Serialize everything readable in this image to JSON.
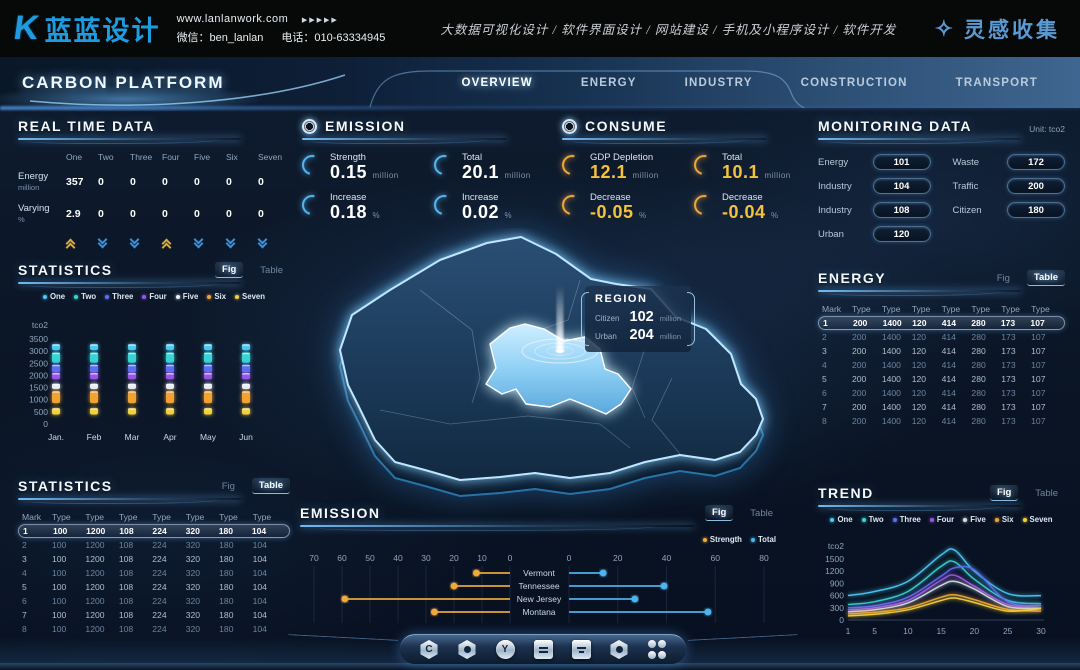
{
  "header": {
    "logo_glyph": "K",
    "logo_text": "蓝蓝设计",
    "website": "www.lanlanwork.com",
    "pager_arrows": "▶▶▶▶▶",
    "wechat": "微信：ben_lanlan",
    "phone": "电话：010-63334945",
    "services": "大数据可视化设计 / 软件界面设计 / 网站建设 / 手机及小程序设计 / 软件开发",
    "collect": "灵感收集"
  },
  "nav": {
    "title": "CARBON PLATFORM",
    "items": [
      {
        "label": "OVERVIEW",
        "active": true
      },
      {
        "label": "ENERGY",
        "active": false
      },
      {
        "label": "INDUSTRY",
        "active": false
      },
      {
        "label": "CONSTRUCTION",
        "active": false
      },
      {
        "label": "TRANSPORT",
        "active": false
      }
    ]
  },
  "realtime": {
    "title": "REAL TIME DATA",
    "columns": [
      "One",
      "Two",
      "Three",
      "Four",
      "Five",
      "Six",
      "Seven"
    ],
    "rows": [
      {
        "label": "Energy",
        "unit": "million",
        "values": [
          "357",
          "0",
          "0",
          "0",
          "0",
          "0",
          "0"
        ]
      },
      {
        "label": "Varying",
        "unit": "%",
        "values": [
          "2.9",
          "0",
          "0",
          "0",
          "0",
          "0",
          "0"
        ]
      }
    ],
    "trends": [
      "up",
      "down",
      "down",
      "up",
      "down",
      "down",
      "down"
    ]
  },
  "emission_stats": {
    "title": "EMISSION",
    "items": [
      {
        "label": "Strength",
        "value": "0.15",
        "unit": "million"
      },
      {
        "label": "Total",
        "value": "20.1",
        "unit": "million"
      },
      {
        "label": "Increase",
        "value": "0.18",
        "unit": "%"
      },
      {
        "label": "Increase",
        "value": "0.02",
        "unit": "%"
      }
    ]
  },
  "consume_stats": {
    "title": "CONSUME",
    "items": [
      {
        "label": "GDP Depletion",
        "value": "12.1",
        "unit": "million"
      },
      {
        "label": "Total",
        "value": "10.1",
        "unit": "million"
      },
      {
        "label": "Decrease",
        "value": "-0.05",
        "unit": "%"
      },
      {
        "label": "Decrease",
        "value": "-0.04",
        "unit": "%"
      }
    ]
  },
  "monitoring": {
    "title": "MONITORING DATA",
    "unit_note": "Unit: tco2",
    "left_items": [
      {
        "label": "Energy",
        "value": "101"
      },
      {
        "label": "Industry",
        "value": "104"
      },
      {
        "label": "Industry",
        "value": "108"
      },
      {
        "label": "Urban",
        "value": "120"
      }
    ],
    "right_items": [
      {
        "label": "Waste",
        "value": "172"
      },
      {
        "label": "Traffic",
        "value": "200"
      },
      {
        "label": "Citizen",
        "value": "180"
      }
    ]
  },
  "region_popup": {
    "title": "REGION",
    "rows": [
      {
        "label": "Citizen",
        "value": "102",
        "unit": "million"
      },
      {
        "label": "Urban",
        "value": "204",
        "unit": "million"
      }
    ]
  },
  "statistics_fig": {
    "title": "STATISTICS",
    "fig_label": "Fig",
    "table_label": "Table",
    "active": "fig"
  },
  "statistics_table": {
    "title": "STATISTICS",
    "fig_label": "Fig",
    "table_label": "Table",
    "active": "table",
    "headers": [
      "Mark",
      "Type",
      "Type",
      "Type",
      "Type",
      "Type",
      "Type",
      "Type"
    ],
    "highlight_row": 0,
    "rows": [
      [
        "1",
        "100",
        "1200",
        "108",
        "224",
        "320",
        "180",
        "104"
      ],
      [
        "2",
        "100",
        "1200",
        "108",
        "224",
        "320",
        "180",
        "104"
      ],
      [
        "3",
        "100",
        "1200",
        "108",
        "224",
        "320",
        "180",
        "104"
      ],
      [
        "4",
        "100",
        "1200",
        "108",
        "224",
        "320",
        "180",
        "104"
      ],
      [
        "5",
        "100",
        "1200",
        "108",
        "224",
        "320",
        "180",
        "104"
      ],
      [
        "6",
        "100",
        "1200",
        "108",
        "224",
        "320",
        "180",
        "104"
      ],
      [
        "7",
        "100",
        "1200",
        "108",
        "224",
        "320",
        "180",
        "104"
      ],
      [
        "8",
        "100",
        "1200",
        "108",
        "224",
        "320",
        "180",
        "104"
      ]
    ]
  },
  "energy_table": {
    "title": "ENERGY",
    "fig_label": "Fig",
    "table_label": "Table",
    "active": "table",
    "headers": [
      "Mark",
      "Type",
      "Type",
      "Type",
      "Type",
      "Type",
      "Type",
      "Type"
    ],
    "highlight_row": 0,
    "rows": [
      [
        "1",
        "200",
        "1400",
        "120",
        "414",
        "280",
        "173",
        "107"
      ],
      [
        "2",
        "200",
        "1400",
        "120",
        "414",
        "280",
        "173",
        "107"
      ],
      [
        "3",
        "200",
        "1400",
        "120",
        "414",
        "280",
        "173",
        "107"
      ],
      [
        "4",
        "200",
        "1400",
        "120",
        "414",
        "280",
        "173",
        "107"
      ],
      [
        "5",
        "200",
        "1400",
        "120",
        "414",
        "280",
        "173",
        "107"
      ],
      [
        "6",
        "200",
        "1400",
        "120",
        "414",
        "280",
        "173",
        "107"
      ],
      [
        "7",
        "200",
        "1400",
        "120",
        "414",
        "280",
        "173",
        "107"
      ],
      [
        "8",
        "200",
        "1400",
        "120",
        "414",
        "280",
        "173",
        "107"
      ]
    ]
  },
  "emission_chart_section": {
    "title": "EMISSION",
    "fig_label": "Fig",
    "table_label": "Table",
    "active": "fig"
  },
  "trend_section": {
    "title": "TREND",
    "fig_label": "Fig",
    "table_label": "Table",
    "active": "fig"
  },
  "toolbar": {
    "icons": [
      {
        "name": "hex-c-icon",
        "glyph": "C",
        "shape": "hex"
      },
      {
        "name": "gear-icon",
        "glyph": "✿",
        "shape": "hex"
      },
      {
        "name": "circle-y-icon",
        "glyph": "Y",
        "shape": "round"
      },
      {
        "name": "kiosk-icon",
        "glyph": "",
        "shape": "rect-bars"
      },
      {
        "name": "monitor-icon",
        "glyph": "",
        "shape": "rect-bars"
      },
      {
        "name": "nut-icon",
        "glyph": "",
        "shape": "hex-dot"
      },
      {
        "name": "apps-icon",
        "glyph": "",
        "shape": "apps"
      }
    ]
  },
  "colors": {
    "accent": "#4db8f0",
    "gold": "#f0a93c",
    "value_gold": "#f5c23c",
    "nav_active": "#ffffff"
  },
  "chart_data": [
    {
      "id": "statistics",
      "type": "bar",
      "title": "STATISTICS",
      "ylabel": "tco2",
      "ylim": [
        0,
        3500
      ],
      "yticks": [
        3500,
        3000,
        2500,
        2000,
        1500,
        1000,
        500,
        0
      ],
      "categories": [
        "Jan.",
        "Feb",
        "Mar",
        "Apr",
        "May",
        "Jun"
      ],
      "legend_position": "top",
      "grid": false,
      "series": [
        {
          "name": "One",
          "color": "#4cc9f5",
          "range": [
            3040,
            3280
          ]
        },
        {
          "name": "Two",
          "color": "#38d4d4",
          "range": [
            2520,
            2940
          ]
        },
        {
          "name": "Three",
          "color": "#5b6ff0",
          "range": [
            2120,
            2440
          ]
        },
        {
          "name": "Four",
          "color": "#9a55e8",
          "range": [
            1840,
            2100
          ]
        },
        {
          "name": "Five",
          "color": "#e9eff6",
          "range": [
            1440,
            1660
          ]
        },
        {
          "name": "Six",
          "color": "#f2a233",
          "range": [
            860,
            1350
          ]
        },
        {
          "name": "Seven",
          "color": "#f2d13e",
          "range": [
            390,
            650
          ]
        }
      ]
    },
    {
      "id": "emission",
      "type": "tornado-lollipop",
      "title": "EMISSION",
      "categories": [
        "Vermont",
        "Tennessee",
        "New Jersey",
        "Montana"
      ],
      "left_axis": {
        "ticks": [
          70,
          60,
          50,
          40,
          30,
          20,
          10,
          0
        ],
        "max": 70
      },
      "right_axis": {
        "ticks": [
          0,
          20,
          40,
          60,
          80
        ],
        "max": 80
      },
      "series": [
        {
          "name": "Strength",
          "color": "#f0a93c",
          "values": [
            12,
            20,
            59,
            27
          ]
        },
        {
          "name": "Total",
          "color": "#4db4f0",
          "values": [
            14,
            39,
            27,
            57
          ]
        }
      ]
    },
    {
      "id": "trend",
      "type": "line",
      "title": "TREND",
      "ylabel": "tco2",
      "ylim": [
        0,
        1800
      ],
      "yticks": [
        1500,
        1200,
        900,
        600,
        300,
        0
      ],
      "xticks": [
        1,
        5,
        10,
        15,
        20,
        25,
        30
      ],
      "x": [
        1,
        5,
        10,
        15,
        17,
        20,
        25,
        30
      ],
      "grid": false,
      "series": [
        {
          "name": "One",
          "color": "#4cc9f5",
          "values": [
            600,
            700,
            950,
            1600,
            1720,
            1200,
            650,
            600
          ]
        },
        {
          "name": "Two",
          "color": "#38d4d4",
          "values": [
            380,
            450,
            700,
            1320,
            1430,
            1000,
            480,
            400
          ]
        },
        {
          "name": "Three",
          "color": "#5b6ff0",
          "values": [
            300,
            350,
            560,
            1080,
            1280,
            1230,
            450,
            350
          ]
        },
        {
          "name": "Four",
          "color": "#9a55e8",
          "values": [
            250,
            300,
            480,
            980,
            1100,
            830,
            380,
            300
          ]
        },
        {
          "name": "Five",
          "color": "#d7dde6",
          "values": [
            200,
            250,
            420,
            850,
            950,
            760,
            330,
            280
          ]
        },
        {
          "name": "Six",
          "color": "#f2a233",
          "values": [
            150,
            190,
            300,
            560,
            620,
            500,
            260,
            220
          ]
        },
        {
          "name": "Seven",
          "color": "#f2d13e",
          "values": [
            100,
            140,
            250,
            480,
            540,
            430,
            220,
            280
          ]
        }
      ]
    }
  ]
}
